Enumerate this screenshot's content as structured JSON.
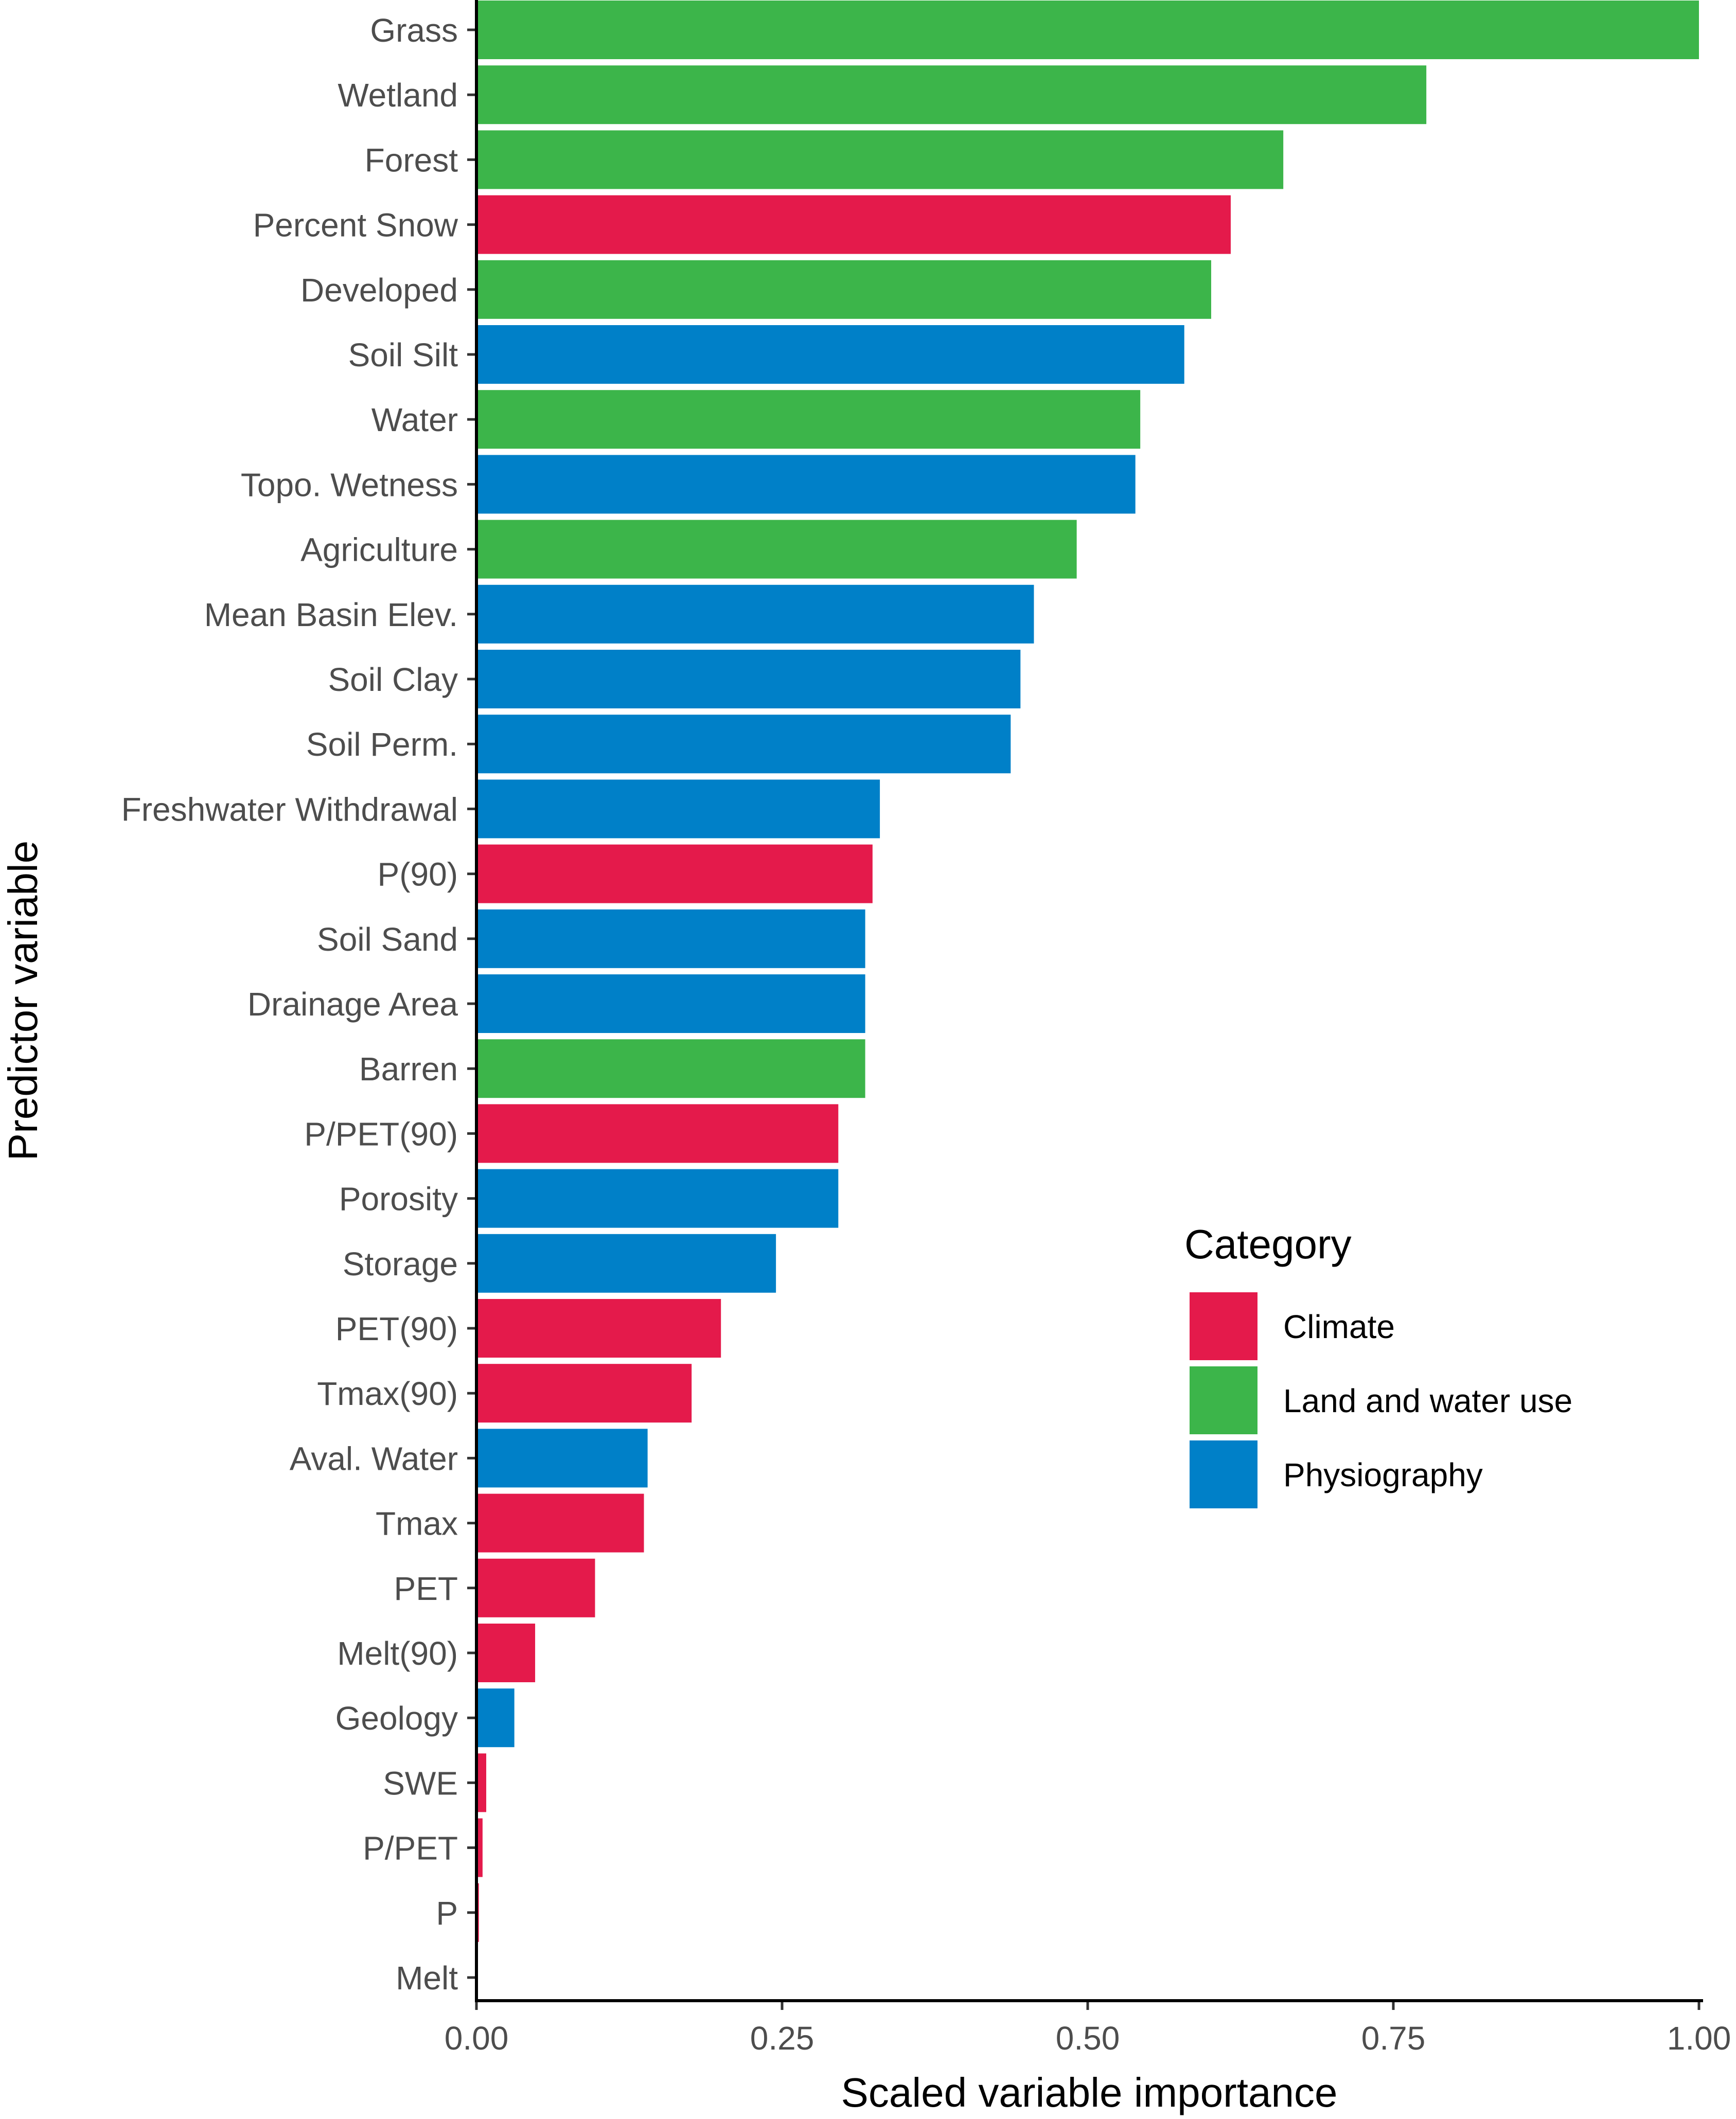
{
  "chart_data": {
    "type": "bar",
    "orientation": "horizontal",
    "xlabel": "Scaled variable importance",
    "ylabel": "Predictor variable",
    "xlim": [
      0,
      1
    ],
    "xticks": [
      "0.00",
      "0.25",
      "0.50",
      "0.75",
      "1.00"
    ],
    "grid": false,
    "legend": {
      "title": "Category",
      "placement": "right",
      "entries": [
        {
          "name": "Climate",
          "color": "#E41A4B"
        },
        {
          "name": "Land and water use",
          "color": "#3CB54A"
        },
        {
          "name": "Physiography",
          "color": "#0080C8"
        }
      ]
    },
    "bars": [
      {
        "label": "Grass",
        "value": 1.0,
        "category": "Land and water use"
      },
      {
        "label": "Wetland",
        "value": 0.777,
        "category": "Land and water use"
      },
      {
        "label": "Forest",
        "value": 0.66,
        "category": "Land and water use"
      },
      {
        "label": "Percent Snow",
        "value": 0.617,
        "category": "Climate"
      },
      {
        "label": "Developed",
        "value": 0.601,
        "category": "Land and water use"
      },
      {
        "label": "Soil Silt",
        "value": 0.579,
        "category": "Physiography"
      },
      {
        "label": "Water",
        "value": 0.543,
        "category": "Land and water use"
      },
      {
        "label": "Topo. Wetness",
        "value": 0.539,
        "category": "Physiography"
      },
      {
        "label": "Agriculture",
        "value": 0.491,
        "category": "Land and water use"
      },
      {
        "label": "Mean Basin Elev.",
        "value": 0.456,
        "category": "Physiography"
      },
      {
        "label": "Soil Clay",
        "value": 0.445,
        "category": "Physiography"
      },
      {
        "label": "Soil Perm.",
        "value": 0.437,
        "category": "Physiography"
      },
      {
        "label": "Freshwater Withdrawal",
        "value": 0.33,
        "category": "Physiography"
      },
      {
        "label": "P(90)",
        "value": 0.324,
        "category": "Climate"
      },
      {
        "label": "Soil Sand",
        "value": 0.318,
        "category": "Physiography"
      },
      {
        "label": "Drainage Area",
        "value": 0.318,
        "category": "Physiography"
      },
      {
        "label": "Barren",
        "value": 0.318,
        "category": "Land and water use"
      },
      {
        "label": "P/PET(90)",
        "value": 0.296,
        "category": "Climate"
      },
      {
        "label": "Porosity",
        "value": 0.296,
        "category": "Physiography"
      },
      {
        "label": "Storage",
        "value": 0.245,
        "category": "Physiography"
      },
      {
        "label": "PET(90)",
        "value": 0.2,
        "category": "Climate"
      },
      {
        "label": "Tmax(90)",
        "value": 0.176,
        "category": "Climate"
      },
      {
        "label": "Aval. Water",
        "value": 0.14,
        "category": "Physiography"
      },
      {
        "label": "Tmax",
        "value": 0.137,
        "category": "Climate"
      },
      {
        "label": "PET",
        "value": 0.097,
        "category": "Climate"
      },
      {
        "label": "Melt(90)",
        "value": 0.048,
        "category": "Climate"
      },
      {
        "label": "Geology",
        "value": 0.031,
        "category": "Physiography"
      },
      {
        "label": "SWE",
        "value": 0.008,
        "category": "Climate"
      },
      {
        "label": "P/PET",
        "value": 0.005,
        "category": "Climate"
      },
      {
        "label": "P",
        "value": 0.002,
        "category": "Climate"
      },
      {
        "label": "Melt",
        "value": 0.0,
        "category": "Climate"
      }
    ]
  }
}
